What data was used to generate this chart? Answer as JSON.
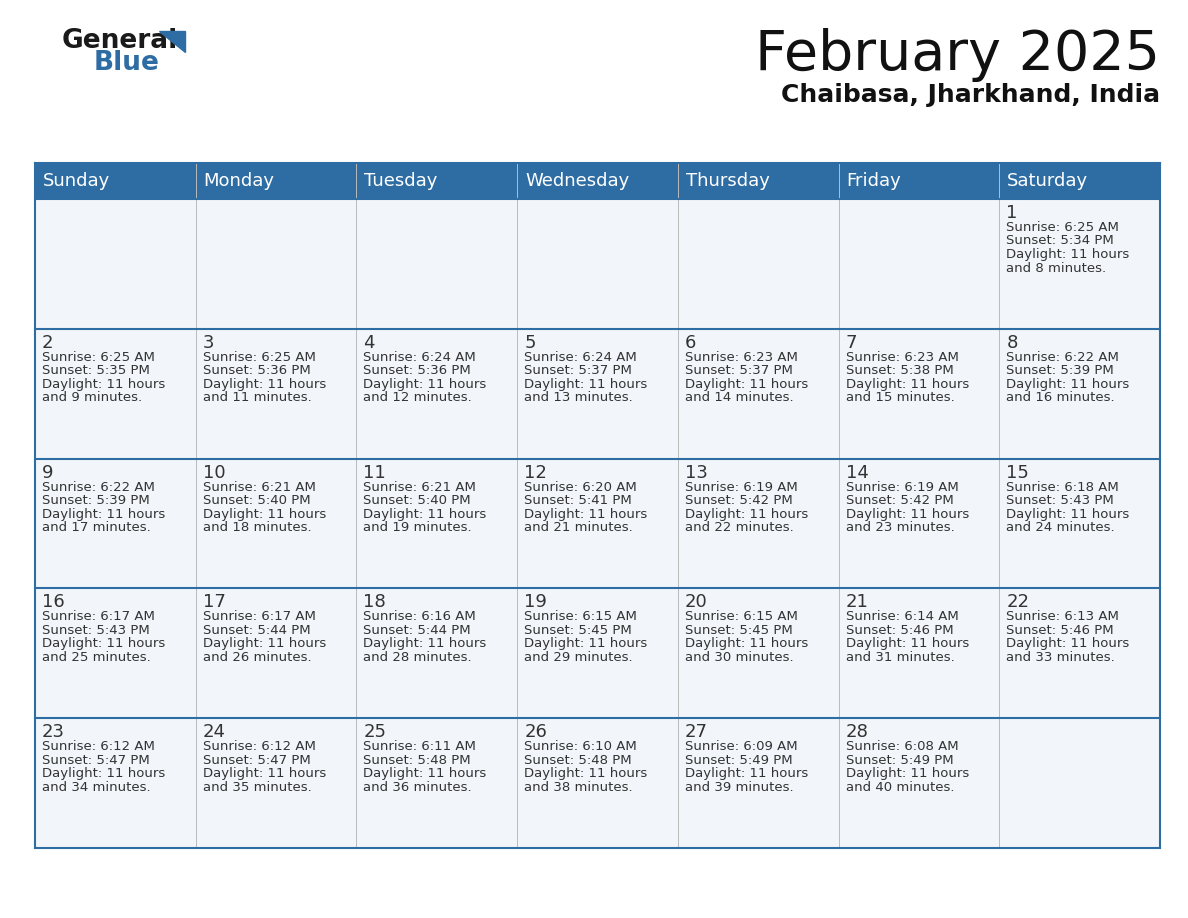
{
  "title": "February 2025",
  "subtitle": "Chaibasa, Jharkhand, India",
  "header_bg": "#2E6DA4",
  "header_text_color": "#FFFFFF",
  "cell_bg": "#F2F6FA",
  "border_color": "#2E6DA4",
  "text_color": "#333333",
  "days_of_week": [
    "Sunday",
    "Monday",
    "Tuesday",
    "Wednesday",
    "Thursday",
    "Friday",
    "Saturday"
  ],
  "logo_general_color": "#1a1a1a",
  "logo_blue_color": "#2E6DA4",
  "title_fontsize": 40,
  "subtitle_fontsize": 18,
  "header_fontsize": 13,
  "day_num_fontsize": 13,
  "cell_text_fontsize": 9.5,
  "calendar": [
    [
      {
        "day": null,
        "sunrise": null,
        "sunset": null,
        "daylight": null
      },
      {
        "day": null,
        "sunrise": null,
        "sunset": null,
        "daylight": null
      },
      {
        "day": null,
        "sunrise": null,
        "sunset": null,
        "daylight": null
      },
      {
        "day": null,
        "sunrise": null,
        "sunset": null,
        "daylight": null
      },
      {
        "day": null,
        "sunrise": null,
        "sunset": null,
        "daylight": null
      },
      {
        "day": null,
        "sunrise": null,
        "sunset": null,
        "daylight": null
      },
      {
        "day": 1,
        "sunrise": "6:25 AM",
        "sunset": "5:34 PM",
        "daylight": "11 hours\nand 8 minutes."
      }
    ],
    [
      {
        "day": 2,
        "sunrise": "6:25 AM",
        "sunset": "5:35 PM",
        "daylight": "11 hours\nand 9 minutes."
      },
      {
        "day": 3,
        "sunrise": "6:25 AM",
        "sunset": "5:36 PM",
        "daylight": "11 hours\nand 11 minutes."
      },
      {
        "day": 4,
        "sunrise": "6:24 AM",
        "sunset": "5:36 PM",
        "daylight": "11 hours\nand 12 minutes."
      },
      {
        "day": 5,
        "sunrise": "6:24 AM",
        "sunset": "5:37 PM",
        "daylight": "11 hours\nand 13 minutes."
      },
      {
        "day": 6,
        "sunrise": "6:23 AM",
        "sunset": "5:37 PM",
        "daylight": "11 hours\nand 14 minutes."
      },
      {
        "day": 7,
        "sunrise": "6:23 AM",
        "sunset": "5:38 PM",
        "daylight": "11 hours\nand 15 minutes."
      },
      {
        "day": 8,
        "sunrise": "6:22 AM",
        "sunset": "5:39 PM",
        "daylight": "11 hours\nand 16 minutes."
      }
    ],
    [
      {
        "day": 9,
        "sunrise": "6:22 AM",
        "sunset": "5:39 PM",
        "daylight": "11 hours\nand 17 minutes."
      },
      {
        "day": 10,
        "sunrise": "6:21 AM",
        "sunset": "5:40 PM",
        "daylight": "11 hours\nand 18 minutes."
      },
      {
        "day": 11,
        "sunrise": "6:21 AM",
        "sunset": "5:40 PM",
        "daylight": "11 hours\nand 19 minutes."
      },
      {
        "day": 12,
        "sunrise": "6:20 AM",
        "sunset": "5:41 PM",
        "daylight": "11 hours\nand 21 minutes."
      },
      {
        "day": 13,
        "sunrise": "6:19 AM",
        "sunset": "5:42 PM",
        "daylight": "11 hours\nand 22 minutes."
      },
      {
        "day": 14,
        "sunrise": "6:19 AM",
        "sunset": "5:42 PM",
        "daylight": "11 hours\nand 23 minutes."
      },
      {
        "day": 15,
        "sunrise": "6:18 AM",
        "sunset": "5:43 PM",
        "daylight": "11 hours\nand 24 minutes."
      }
    ],
    [
      {
        "day": 16,
        "sunrise": "6:17 AM",
        "sunset": "5:43 PM",
        "daylight": "11 hours\nand 25 minutes."
      },
      {
        "day": 17,
        "sunrise": "6:17 AM",
        "sunset": "5:44 PM",
        "daylight": "11 hours\nand 26 minutes."
      },
      {
        "day": 18,
        "sunrise": "6:16 AM",
        "sunset": "5:44 PM",
        "daylight": "11 hours\nand 28 minutes."
      },
      {
        "day": 19,
        "sunrise": "6:15 AM",
        "sunset": "5:45 PM",
        "daylight": "11 hours\nand 29 minutes."
      },
      {
        "day": 20,
        "sunrise": "6:15 AM",
        "sunset": "5:45 PM",
        "daylight": "11 hours\nand 30 minutes."
      },
      {
        "day": 21,
        "sunrise": "6:14 AM",
        "sunset": "5:46 PM",
        "daylight": "11 hours\nand 31 minutes."
      },
      {
        "day": 22,
        "sunrise": "6:13 AM",
        "sunset": "5:46 PM",
        "daylight": "11 hours\nand 33 minutes."
      }
    ],
    [
      {
        "day": 23,
        "sunrise": "6:12 AM",
        "sunset": "5:47 PM",
        "daylight": "11 hours\nand 34 minutes."
      },
      {
        "day": 24,
        "sunrise": "6:12 AM",
        "sunset": "5:47 PM",
        "daylight": "11 hours\nand 35 minutes."
      },
      {
        "day": 25,
        "sunrise": "6:11 AM",
        "sunset": "5:48 PM",
        "daylight": "11 hours\nand 36 minutes."
      },
      {
        "day": 26,
        "sunrise": "6:10 AM",
        "sunset": "5:48 PM",
        "daylight": "11 hours\nand 38 minutes."
      },
      {
        "day": 27,
        "sunrise": "6:09 AM",
        "sunset": "5:49 PM",
        "daylight": "11 hours\nand 39 minutes."
      },
      {
        "day": 28,
        "sunrise": "6:08 AM",
        "sunset": "5:49 PM",
        "daylight": "11 hours\nand 40 minutes."
      },
      {
        "day": null,
        "sunrise": null,
        "sunset": null,
        "daylight": null
      }
    ]
  ]
}
